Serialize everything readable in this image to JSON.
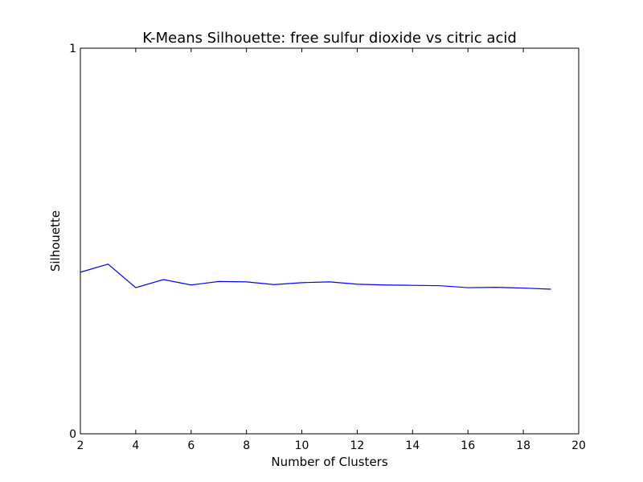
{
  "chart_data": {
    "type": "line",
    "title": "K-Means Silhouette: free sulfur dioxide vs citric acid",
    "xlabel": "Number of Clusters",
    "ylabel": "Silhouette",
    "xlim": [
      2,
      20
    ],
    "ylim": [
      0,
      1
    ],
    "xticks": [
      2,
      4,
      6,
      8,
      10,
      12,
      14,
      16,
      18,
      20
    ],
    "yticks": [
      0,
      1
    ],
    "xtick_labels": [
      "2",
      "4",
      "6",
      "8",
      "10",
      "12",
      "14",
      "16",
      "18",
      "20"
    ],
    "ytick_labels": [
      "0",
      "1"
    ],
    "grid": false,
    "legend": false,
    "line_color": "#0000ff",
    "x": [
      2,
      3,
      4,
      5,
      6,
      7,
      8,
      9,
      10,
      11,
      12,
      13,
      14,
      15,
      16,
      17,
      18,
      19
    ],
    "y": [
      0.419,
      0.44,
      0.379,
      0.4,
      0.386,
      0.395,
      0.394,
      0.387,
      0.392,
      0.394,
      0.388,
      0.386,
      0.385,
      0.384,
      0.379,
      0.38,
      0.378,
      0.375
    ]
  }
}
